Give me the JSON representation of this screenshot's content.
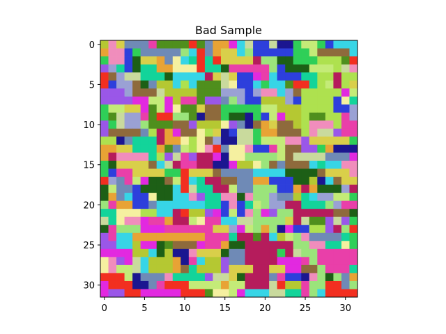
{
  "chart_data": {
    "type": "heatmap",
    "title": "Bad Sample",
    "xlabel": "",
    "ylabel": "",
    "grid_size": [
      32,
      32
    ],
    "xlim": [
      -0.5,
      31.5
    ],
    "ylim": [
      31.5,
      -0.5
    ],
    "x_ticks": [
      0,
      5,
      10,
      15,
      20,
      25,
      30
    ],
    "y_ticks": [
      0,
      5,
      10,
      15,
      20,
      25,
      30
    ],
    "grid": false,
    "colormap": "rgb",
    "palette": [
      "#b5c832",
      "#e93fa9",
      "#2d3fdc",
      "#4f8f1d",
      "#9be47b",
      "#c9da9d",
      "#e229e0",
      "#1d5f16",
      "#c4eb78",
      "#f22f20",
      "#e8a335",
      "#13d49a",
      "#9a57e8",
      "#1b1690",
      "#8e6a3c",
      "#aee14f",
      "#f08dbc",
      "#2fcf58",
      "#6f8ab6",
      "#d9cf4a",
      "#b51c5c",
      "#f5f0a0",
      "#37d5e6",
      "#9aa1d4"
    ]
  }
}
